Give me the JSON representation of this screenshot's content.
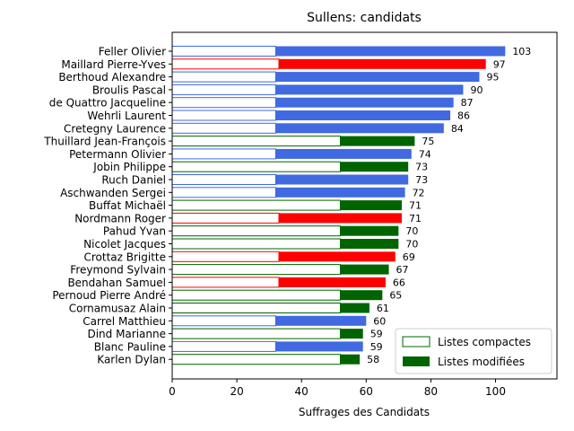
{
  "chart_data": {
    "type": "bar",
    "orientation": "horizontal",
    "stacked": true,
    "title": "Sullens: candidats",
    "xlabel": "Suffrages des Candidats",
    "ylabel": "",
    "xlim": [
      0,
      119
    ],
    "xticks": [
      0,
      20,
      40,
      60,
      80,
      100
    ],
    "grid": false,
    "legend_position": "bottom-right",
    "categories": [
      "Feller Olivier",
      "Maillard Pierre-Yves",
      "Berthoud Alexandre",
      "Broulis Pascal",
      "de Quattro Jacqueline",
      "Wehrli Laurent",
      "Cretegny Laurence",
      "Thuillard Jean-François",
      "Petermann Olivier",
      "Jobin Philippe",
      "Ruch Daniel",
      "Aschwanden Sergei",
      "Buffat Michaël",
      "Nordmann Roger",
      "Pahud Yvan",
      "Nicolet Jacques",
      "Crottaz Brigitte",
      "Freymond Sylvain",
      "Bendahan Samuel",
      "Pernoud Pierre André",
      "Cornamusaz Alain",
      "Carrel Matthieu",
      "Dind Marianne",
      "Blanc Pauline",
      "Karlen Dylan"
    ],
    "colors": [
      "#4169e1",
      "#ff0000",
      "#4169e1",
      "#4169e1",
      "#4169e1",
      "#4169e1",
      "#4169e1",
      "#006400",
      "#4169e1",
      "#006400",
      "#4169e1",
      "#4169e1",
      "#006400",
      "#ff0000",
      "#006400",
      "#006400",
      "#ff0000",
      "#006400",
      "#ff0000",
      "#006400",
      "#006400",
      "#4169e1",
      "#006400",
      "#4169e1",
      "#006400"
    ],
    "series": [
      {
        "name": "Listes compactes",
        "style": "outline",
        "values": [
          32,
          33,
          32,
          32,
          32,
          32,
          32,
          52,
          32,
          52,
          32,
          32,
          52,
          33,
          52,
          52,
          33,
          52,
          33,
          52,
          52,
          32,
          52,
          32,
          52
        ]
      },
      {
        "name": "Listes modifiées",
        "style": "filled",
        "values": [
          71,
          64,
          63,
          58,
          55,
          54,
          52,
          23,
          42,
          21,
          41,
          40,
          19,
          38,
          18,
          18,
          36,
          15,
          33,
          13,
          9,
          28,
          7,
          27,
          6
        ]
      }
    ],
    "totals": [
      103,
      97,
      95,
      90,
      87,
      86,
      84,
      75,
      74,
      73,
      73,
      72,
      71,
      71,
      70,
      70,
      69,
      67,
      66,
      65,
      61,
      60,
      59,
      59,
      58
    ],
    "legend_swatch_color": "#006400"
  }
}
